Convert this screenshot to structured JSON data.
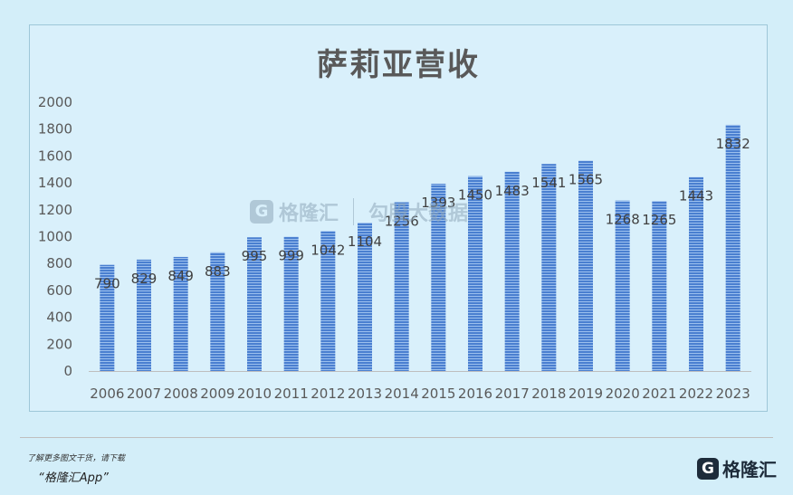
{
  "chart_data": {
    "type": "bar",
    "title": "萨莉亚营收",
    "categories": [
      "2006",
      "2007",
      "2008",
      "2009",
      "2010",
      "2011",
      "2012",
      "2013",
      "2014",
      "2015",
      "2016",
      "2017",
      "2018",
      "2019",
      "2020",
      "2021",
      "2022",
      "2023"
    ],
    "values": [
      790,
      829,
      849,
      883,
      995,
      999,
      1042,
      1104,
      1256,
      1393,
      1450,
      1483,
      1541,
      1565,
      1268,
      1265,
      1443,
      1832
    ],
    "yticks": [
      0,
      200,
      400,
      600,
      800,
      1000,
      1200,
      1400,
      1600,
      1800,
      2000
    ],
    "ylim": [
      0,
      2000
    ],
    "grid": false,
    "bar_color": "#4a7fd0"
  },
  "watermark": {
    "logo_char": "G",
    "brand": "格隆汇",
    "partner": "勾股大数据"
  },
  "footer": {
    "note": "了解更多图文干货，请下载",
    "app": "“格隆汇App”",
    "brand_logo_char": "G",
    "brand_name": "格隆汇"
  }
}
